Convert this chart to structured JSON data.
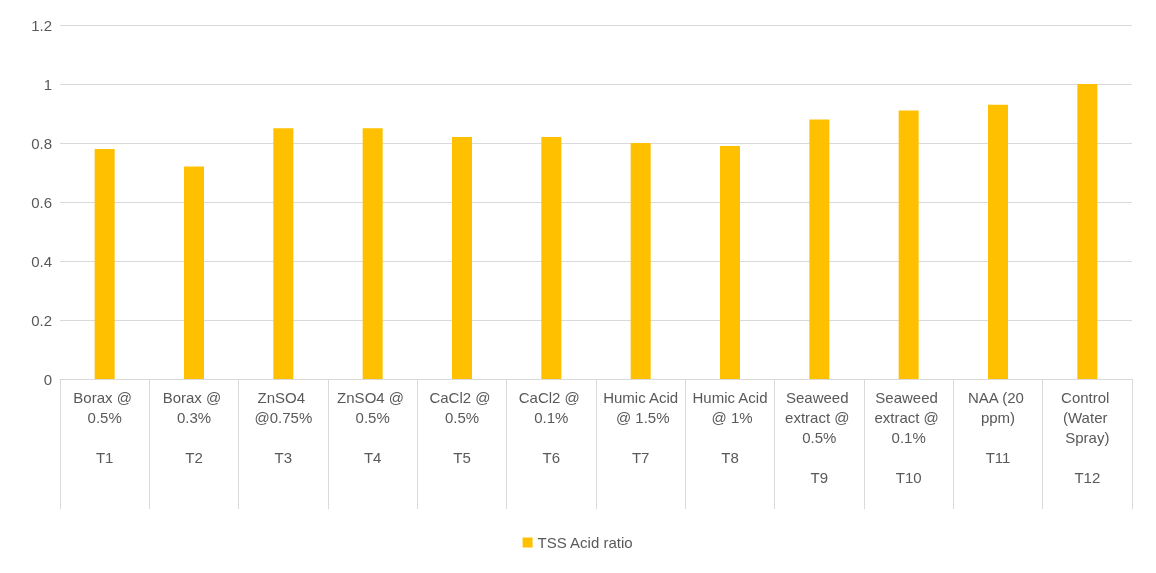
{
  "chart_data": {
    "type": "bar",
    "categories": [
      "Borax @ 0.5%\n\nT1",
      "Borax @ 0.3%\n\nT2",
      "ZnSO4 @0.75%\n\nT3",
      "ZnSO4 @ 0.5%\n\nT4",
      "CaCl2 @ 0.5%\n\nT5",
      "CaCl2 @ 0.1%\n\nT6",
      "Humic Acid @ 1.5%\n\nT7",
      "Humic Acid @ 1%\n\nT8",
      "Seaweed extract @ 0.5%\n\nT9",
      "Seaweed extract @ 0.1%\n\nT10",
      "NAA (20 ppm)\n\nT11",
      "Control (Water Spray)\n\nT12"
    ],
    "series": [
      {
        "name": "TSS Acid ratio",
        "color": "#ffc000",
        "values": [
          0.78,
          0.72,
          0.85,
          0.85,
          0.82,
          0.82,
          0.8,
          0.79,
          0.88,
          0.91,
          0.93,
          1.0
        ]
      }
    ],
    "ylim": [
      0,
      1.2
    ],
    "yticks": [
      0,
      0.2,
      0.4,
      0.6,
      0.8,
      1,
      1.2
    ],
    "grid": "y",
    "legend": "bottom"
  }
}
